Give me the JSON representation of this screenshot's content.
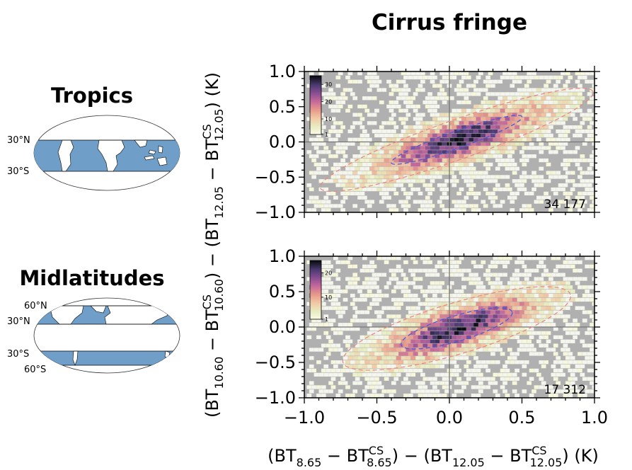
{
  "title": "Cirrus fringe",
  "regions": [
    {
      "name": "Tropics",
      "lat_labels_left": [
        "30°N",
        "30°S"
      ]
    },
    {
      "name": "Midlatitudes",
      "lat_labels_left": [
        "60°N",
        "30°N",
        "30°S",
        "60°S"
      ]
    }
  ],
  "ylabel": {
    "a": "(BT",
    "a_sub": "10.60",
    "b": " − BT",
    "b_sup": "CS",
    "b_sub": "10.60",
    "c": ") − (BT",
    "c_sub": "12.05",
    "d": " − BT",
    "d_sup": "CS",
    "d_sub": "12.05",
    "e": ") (K)"
  },
  "xlabel": {
    "a": "(BT",
    "a_sub": "8.65",
    "b": " − BT",
    "b_sup": "CS",
    "b_sub": "8.65",
    "c": ") − (BT",
    "c_sub": "12.05",
    "d": " − BT",
    "d_sup": "CS",
    "d_sub": "12.05",
    "e": ") (K)"
  },
  "colors": {
    "background": "#b0b0b0",
    "ellipse_inner": "#4a5bd6",
    "ellipse_outer": "#e88a8a",
    "colormap": [
      "#fdfbe8",
      "#e7ecc1",
      "#f3c9a7",
      "#e89a8a",
      "#c76a9a",
      "#8a4d93",
      "#4a3a70",
      "#0c0d14"
    ]
  },
  "chart_data": [
    {
      "type": "heatmap",
      "region": "Tropics",
      "xlim": [
        -1.0,
        1.0
      ],
      "ylim": [
        -1.0,
        1.0
      ],
      "x_ticks": [
        "−1.0",
        "−0.5",
        "0.0",
        "0.5",
        "1.0"
      ],
      "y_ticks": [
        "−1.0",
        "−0.5",
        "0.0",
        "0.5",
        "1.0"
      ],
      "count": "34 177",
      "colorbar": {
        "min": 1,
        "max": 35,
        "ticks": [
          "30",
          "20",
          "10",
          "1"
        ]
      },
      "distribution": {
        "x_mean": 0.05,
        "y_mean": 0.03,
        "sx": 0.35,
        "sy": 0.3,
        "corr": 0.8
      },
      "ellipses": [
        {
          "level": "inner",
          "semi_major": 0.48,
          "semi_minor": 0.06,
          "angle_deg": 20
        },
        {
          "level": "outer",
          "semi_major": 1.0,
          "semi_minor": 0.14,
          "angle_deg": 20
        }
      ]
    },
    {
      "type": "heatmap",
      "region": "Midlatitudes",
      "xlim": [
        -1.0,
        1.0
      ],
      "ylim": [
        -1.0,
        1.0
      ],
      "x_ticks": [
        "−1.0",
        "−0.5",
        "0.0",
        "0.5",
        "1.0"
      ],
      "y_ticks": [
        "−1.0",
        "−0.5",
        "0.0",
        "0.5",
        "1.0"
      ],
      "count": "17 312",
      "colorbar": {
        "min": 1,
        "max": 25,
        "ticks": [
          "20",
          "10",
          "1"
        ]
      },
      "distribution": {
        "x_mean": 0.05,
        "y_mean": -0.02,
        "sx": 0.33,
        "sy": 0.28,
        "corr": 0.75
      },
      "ellipses": [
        {
          "level": "inner",
          "semi_major": 0.4,
          "semi_minor": 0.09,
          "angle_deg": 17
        },
        {
          "level": "outer",
          "semi_major": 0.82,
          "semi_minor": 0.18,
          "angle_deg": 17
        }
      ]
    }
  ]
}
